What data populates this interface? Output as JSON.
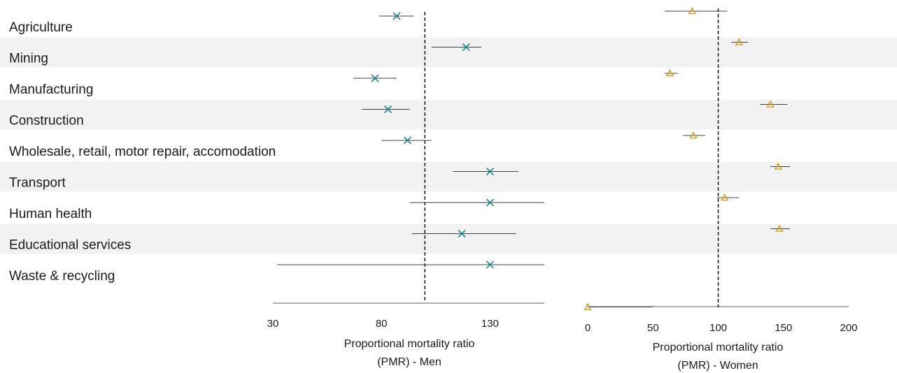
{
  "chart_data": {
    "type": "forest",
    "categories": [
      "Agriculture",
      "Mining",
      "Manufacturing",
      "Construction",
      "Wholesale, retail, motor repair, accomodation",
      "Transport",
      "Human health",
      "Educational services",
      "Waste & recycling"
    ],
    "panels": [
      {
        "name": "Men",
        "xlabel_lines": [
          "Proportional mortality ratio",
          "(PMR) - Men"
        ],
        "xlim": [
          30,
          155
        ],
        "ticks": [
          30,
          80,
          130
        ],
        "reference": 100,
        "marker": "x",
        "color": "#1f8a8a",
        "estimates": [
          87,
          119,
          77,
          83,
          92,
          130,
          130,
          117,
          130
        ],
        "ci_low": [
          79,
          103,
          67,
          71,
          80,
          113,
          93,
          94,
          32
        ],
        "ci_high": [
          95,
          126,
          87,
          93,
          103,
          143,
          155,
          142,
          155
        ]
      },
      {
        "name": "Women",
        "xlabel_lines": [
          "Proportional mortality ratio",
          "(PMR) - Women"
        ],
        "xlim": [
          0,
          200
        ],
        "ticks": [
          0,
          50,
          100,
          150,
          200
        ],
        "reference": 100,
        "marker": "triangle",
        "color": "#d4a017",
        "estimates": [
          80,
          116,
          63,
          140,
          81,
          146,
          105,
          147
        ],
        "ci_low": [
          59,
          110,
          59,
          132,
          73,
          140,
          99,
          140
        ],
        "ci_high": [
          107,
          123,
          69,
          153,
          90,
          155,
          116,
          155
        ],
        "extra_point": {
          "estimate": 0,
          "ci_low": 0,
          "ci_high": 50
        }
      }
    ]
  }
}
